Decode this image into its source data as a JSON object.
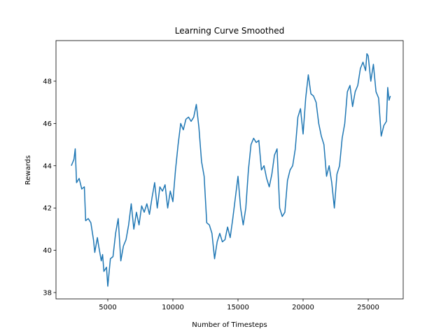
{
  "chart_data": {
    "type": "line",
    "title": "Learning Curve Smoothed",
    "xlabel": "Number of Timesteps",
    "ylabel": "Rewards",
    "color": "#1f77b4",
    "x": [
      2200,
      2400,
      2500,
      2600,
      2800,
      3000,
      3200,
      3300,
      3500,
      3700,
      3900,
      4000,
      4200,
      4300,
      4500,
      4600,
      4700,
      4900,
      5000,
      5200,
      5400,
      5600,
      5800,
      6000,
      6200,
      6400,
      6600,
      6800,
      7000,
      7200,
      7400,
      7600,
      7800,
      8000,
      8200,
      8400,
      8600,
      8800,
      9000,
      9200,
      9400,
      9600,
      9800,
      10000,
      10200,
      10400,
      10600,
      10800,
      11000,
      11200,
      11400,
      11600,
      11800,
      12000,
      12200,
      12400,
      12600,
      12800,
      13000,
      13200,
      13400,
      13600,
      13800,
      14000,
      14200,
      14400,
      14600,
      14800,
      15000,
      15200,
      15400,
      15600,
      15800,
      16000,
      16200,
      16400,
      16600,
      16800,
      17000,
      17200,
      17400,
      17600,
      17800,
      18000,
      18200,
      18400,
      18600,
      18800,
      19000,
      19200,
      19400,
      19600,
      19800,
      20000,
      20200,
      20400,
      20600,
      20800,
      21000,
      21200,
      21400,
      21600,
      21800,
      22000,
      22200,
      22400,
      22600,
      22800,
      23000,
      23200,
      23400,
      23600,
      23800,
      24000,
      24200,
      24400,
      24600,
      24800,
      24900,
      25000,
      25200,
      25400,
      25600,
      25800,
      26000,
      26200,
      26400,
      26500,
      26600,
      26700
    ],
    "values": [
      44.0,
      44.3,
      44.8,
      43.2,
      43.4,
      42.9,
      43.0,
      41.4,
      41.5,
      41.3,
      40.5,
      39.9,
      40.6,
      40.2,
      39.5,
      39.8,
      39.0,
      39.2,
      38.3,
      39.6,
      39.7,
      40.8,
      41.5,
      39.5,
      40.2,
      40.5,
      41.2,
      42.2,
      41.0,
      41.8,
      41.2,
      42.1,
      41.8,
      42.2,
      41.7,
      42.5,
      43.2,
      42.0,
      43.0,
      42.8,
      43.1,
      42.0,
      42.8,
      42.3,
      43.8,
      45.0,
      46.0,
      45.7,
      46.2,
      46.3,
      46.1,
      46.3,
      46.9,
      45.8,
      44.2,
      43.5,
      41.3,
      41.2,
      40.8,
      39.6,
      40.4,
      40.8,
      40.4,
      40.5,
      41.1,
      40.6,
      41.5,
      42.5,
      43.5,
      42.0,
      41.2,
      42.0,
      43.8,
      45.0,
      45.3,
      45.1,
      45.2,
      43.8,
      44.0,
      43.4,
      43.0,
      43.6,
      44.5,
      44.8,
      42.0,
      41.6,
      41.8,
      43.3,
      43.8,
      44.0,
      44.8,
      46.3,
      46.7,
      45.5,
      47.2,
      48.3,
      47.4,
      47.3,
      47.0,
      46.0,
      45.4,
      45.0,
      43.5,
      44.0,
      43.2,
      42.0,
      43.6,
      44.0,
      45.3,
      46.0,
      47.5,
      47.8,
      46.8,
      47.5,
      47.8,
      48.6,
      48.9,
      48.5,
      49.3,
      49.2,
      48.0,
      48.8,
      47.5,
      47.2,
      45.4,
      45.9,
      46.1,
      47.7,
      47.1,
      47.3
    ],
    "xlim": [
      1022,
      27688
    ],
    "ylim": [
      37.7,
      49.92
    ],
    "xticks": [
      5000,
      10000,
      15000,
      20000,
      25000
    ],
    "yticks": [
      38,
      40,
      42,
      44,
      46,
      48
    ]
  }
}
